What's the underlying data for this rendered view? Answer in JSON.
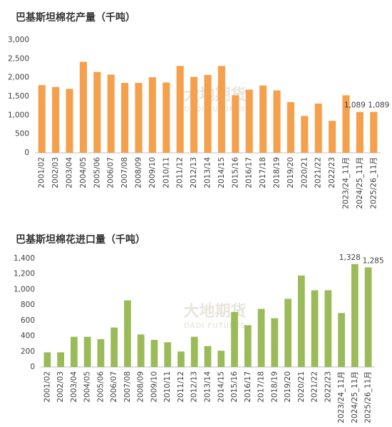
{
  "chart_data": [
    {
      "type": "bar",
      "title": "巴基斯坦棉花产量（千吨）",
      "watermark": "大地期货",
      "watermark_sub": "DADI FUTURES",
      "categories": [
        "2001/02",
        "2002/03",
        "2003/04",
        "2004/05",
        "2005/06",
        "2006/07",
        "2007/08",
        "2008/09",
        "2009/10",
        "2010/11",
        "2011/12",
        "2012/13",
        "2013/14",
        "2014/15",
        "2015/16",
        "2016/17",
        "2017/18",
        "2018/19",
        "2019/20",
        "2020/21",
        "2021/22",
        "2022/23",
        "2023/24_11月",
        "2024/25_11月",
        "2025/26_11月"
      ],
      "values": [
        1800,
        1750,
        1700,
        2420,
        2150,
        2080,
        1860,
        1860,
        2010,
        1870,
        2310,
        2020,
        2070,
        2310,
        1530,
        1680,
        1790,
        1660,
        1350,
        980,
        1310,
        850,
        1530,
        1089,
        1089
      ],
      "value_labels": [
        null,
        null,
        null,
        null,
        null,
        null,
        null,
        null,
        null,
        null,
        null,
        null,
        null,
        null,
        null,
        null,
        null,
        null,
        null,
        null,
        null,
        null,
        null,
        "1,089",
        "1,089"
      ],
      "color": "#f5a04c",
      "ylim": [
        0,
        3000
      ],
      "yticks": [
        0,
        500,
        {
          "value": 1000,
          "label": "1,000"
        },
        {
          "value": 1500,
          "label": "1,500"
        },
        {
          "value": 2000,
          "label": "2,000"
        },
        {
          "value": 2500,
          "label": "2,500"
        },
        {
          "value": 3000,
          "label": "3,000"
        }
      ],
      "grid": false
    },
    {
      "type": "bar",
      "title": "巴基斯坦棉花进口量（千吨）",
      "watermark": "大地期货",
      "watermark_sub": "DADI FUTURES",
      "categories": [
        "2001/02",
        "2002/03",
        "2003/04",
        "2004/05",
        "2005/06",
        "2006/07",
        "2007/08",
        "2008/09",
        "2009/10",
        "2010/11",
        "2011/12",
        "2012/13",
        "2013/14",
        "2014/15",
        "2015/16",
        "2016/17",
        "2017/18",
        "2018/19",
        "2019/20",
        "2020/21",
        "2021/22",
        "2022/23",
        "2023/24_11月",
        "2024/25_11月",
        "2025/26_11月"
      ],
      "values": [
        190,
        190,
        390,
        390,
        360,
        510,
        860,
        420,
        350,
        320,
        200,
        390,
        270,
        210,
        710,
        540,
        750,
        630,
        880,
        1180,
        990,
        990,
        697,
        1328,
        1285
      ],
      "value_labels": [
        null,
        null,
        null,
        null,
        null,
        null,
        null,
        null,
        null,
        null,
        null,
        null,
        null,
        null,
        null,
        null,
        null,
        null,
        null,
        null,
        null,
        null,
        null,
        "1,328",
        "1,285"
      ],
      "color": "#9bbb59",
      "ylim": [
        0,
        1400
      ],
      "yticks": [
        0,
        200,
        400,
        600,
        800,
        {
          "value": 1000,
          "label": "1,000"
        },
        {
          "value": 1200,
          "label": "1,200"
        },
        {
          "value": 1400,
          "label": "1,400"
        }
      ],
      "grid": false
    }
  ]
}
